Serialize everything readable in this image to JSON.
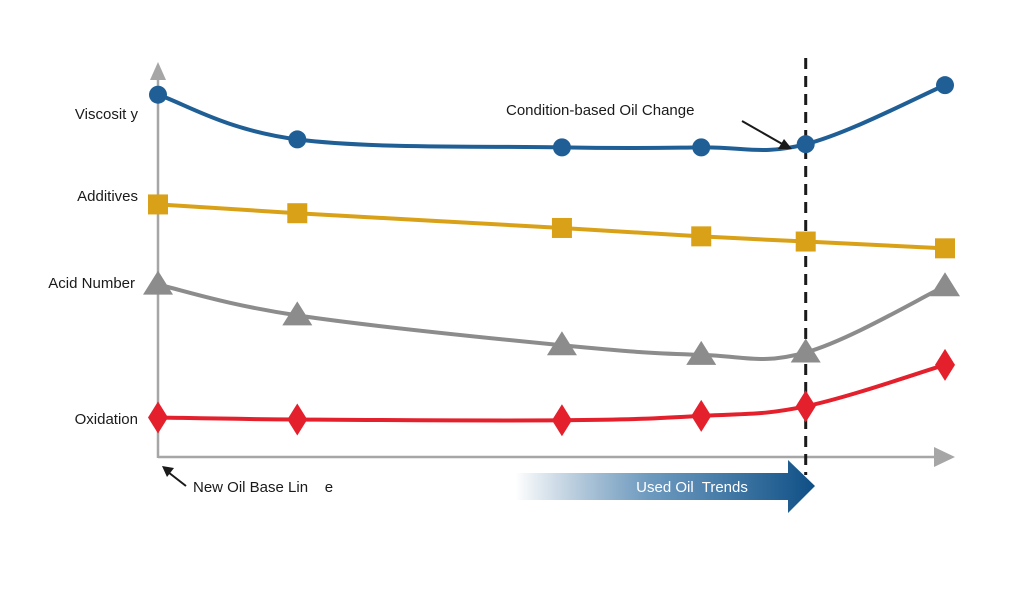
{
  "chart_data": {
    "type": "line",
    "title": "",
    "xlabel": "",
    "ylabel": "",
    "grid": false,
    "x": [
      0,
      1,
      2.9,
      3.9,
      4.65,
      5.65
    ],
    "xlim": [
      0,
      5.65
    ],
    "series": [
      {
        "name": "Viscosit y",
        "marker": "circle",
        "color": "#1f5f96",
        "values": [
          90.8,
          79.6,
          77.6,
          77.6,
          78.4,
          93.2
        ]
      },
      {
        "name": "Additives",
        "marker": "square",
        "color": "#d9a118",
        "values": [
          63.3,
          61.1,
          57.4,
          55.3,
          54.0,
          52.3
        ]
      },
      {
        "name": "Acid Number",
        "marker": "triangle",
        "color": "#8c8c8c",
        "values": [
          43.2,
          35.5,
          28.0,
          25.6,
          26.2,
          42.8
        ]
      },
      {
        "name": "Oxidation",
        "marker": "diamond",
        "color": "#e3202c",
        "values": [
          9.9,
          9.4,
          9.2,
          10.3,
          12.7,
          23.1
        ]
      }
    ],
    "annotations": {
      "oil_change": "Condition-based Oil Change",
      "oil_change_x": 4.65,
      "baseline": "New Oil Base Lin    e",
      "trend": "Used Oil  Trends"
    },
    "colors": {
      "axis": "#a6a6a6",
      "arrow_dark": "#1a1a1a",
      "trend_arrow": "#0f4f85"
    }
  }
}
